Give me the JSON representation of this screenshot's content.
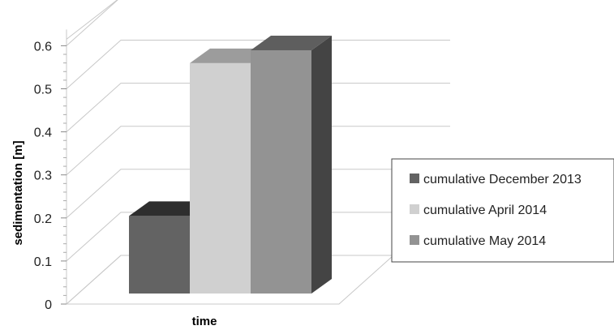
{
  "chart_data": {
    "type": "bar",
    "style": "3d-clustered-column",
    "categories": [
      "time"
    ],
    "xlabel": "time",
    "ylabel": "sedimentation [m]",
    "ylim": [
      0,
      0.6
    ],
    "yticks": [
      "0",
      "0.1",
      "0.2",
      "0.3",
      "0.4",
      "0.5",
      "0.6"
    ],
    "grid": true,
    "legend_position": "right",
    "series": [
      {
        "name": "cumulative December 2013",
        "values": [
          0.18
        ],
        "color": "#636363",
        "side_color": "#3a3a3a",
        "top_color": "#2e2e2e"
      },
      {
        "name": "cumulative April 2014",
        "values": [
          0.535
        ],
        "color": "#d0d0d0",
        "side_color": "#b5b5b5",
        "top_color": "#9c9c9c"
      },
      {
        "name": "cumulative May 2014",
        "values": [
          0.565
        ],
        "color": "#939393",
        "side_color": "#444444",
        "top_color": "#5e5e5e"
      }
    ]
  }
}
